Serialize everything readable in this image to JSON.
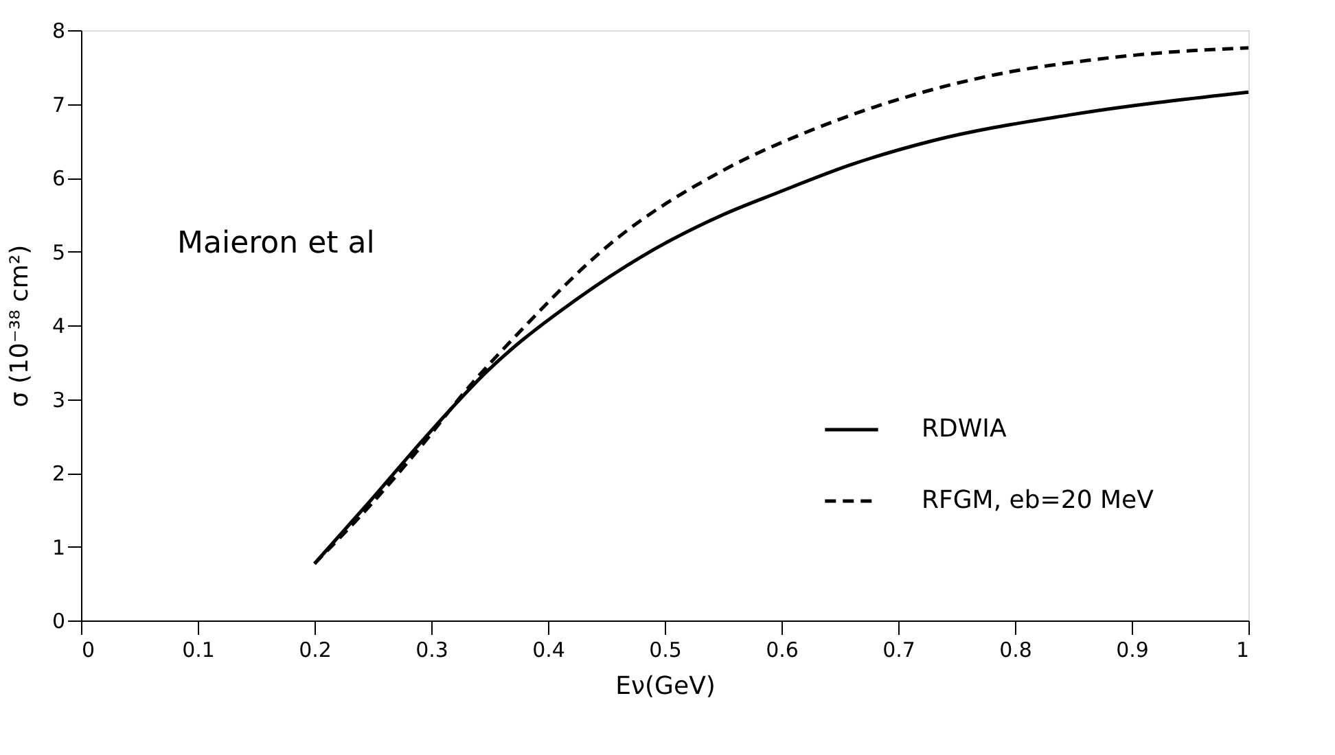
{
  "chart_data": {
    "type": "line",
    "xlabel": "Eν(GeV)",
    "ylabel": "σ (10⁻³⁸ cm²)",
    "xlim": [
      0,
      1
    ],
    "ylim": [
      0,
      8
    ],
    "xticks": [
      0,
      0.1,
      0.2,
      0.3,
      0.4,
      0.5,
      0.6,
      0.7,
      0.8,
      0.9,
      1
    ],
    "yticks": [
      0,
      1,
      2,
      3,
      4,
      5,
      6,
      7,
      8
    ],
    "grid": false,
    "legend": "bottom right",
    "marker": "none",
    "annotations": [
      "Maieron et al"
    ],
    "series": [
      {
        "name": "RDWIA",
        "color": "#000000",
        "line_style": "solid",
        "x": [
          0.2,
          0.246,
          0.297,
          0.348,
          0.426,
          0.48,
          0.55,
          0.597,
          0.66,
          0.729,
          0.846,
          1.0
        ],
        "values": [
          0.77,
          1.59,
          2.52,
          3.38,
          4.37,
          4.93,
          5.5,
          5.8,
          6.18,
          6.5,
          6.85,
          7.16
        ]
      },
      {
        "name": "RFGM, eb=20 MeV",
        "color": "#000000",
        "line_style": "dashed",
        "x": [
          0.2,
          0.25,
          0.3,
          0.324,
          0.375,
          0.453,
          0.55,
          0.628,
          0.706,
          0.784,
          0.862,
          0.939,
          1.0
        ],
        "values": [
          0.77,
          1.6,
          2.53,
          3.01,
          3.9,
          5.1,
          6.1,
          6.66,
          7.09,
          7.4,
          7.59,
          7.71,
          7.76
        ]
      }
    ]
  }
}
